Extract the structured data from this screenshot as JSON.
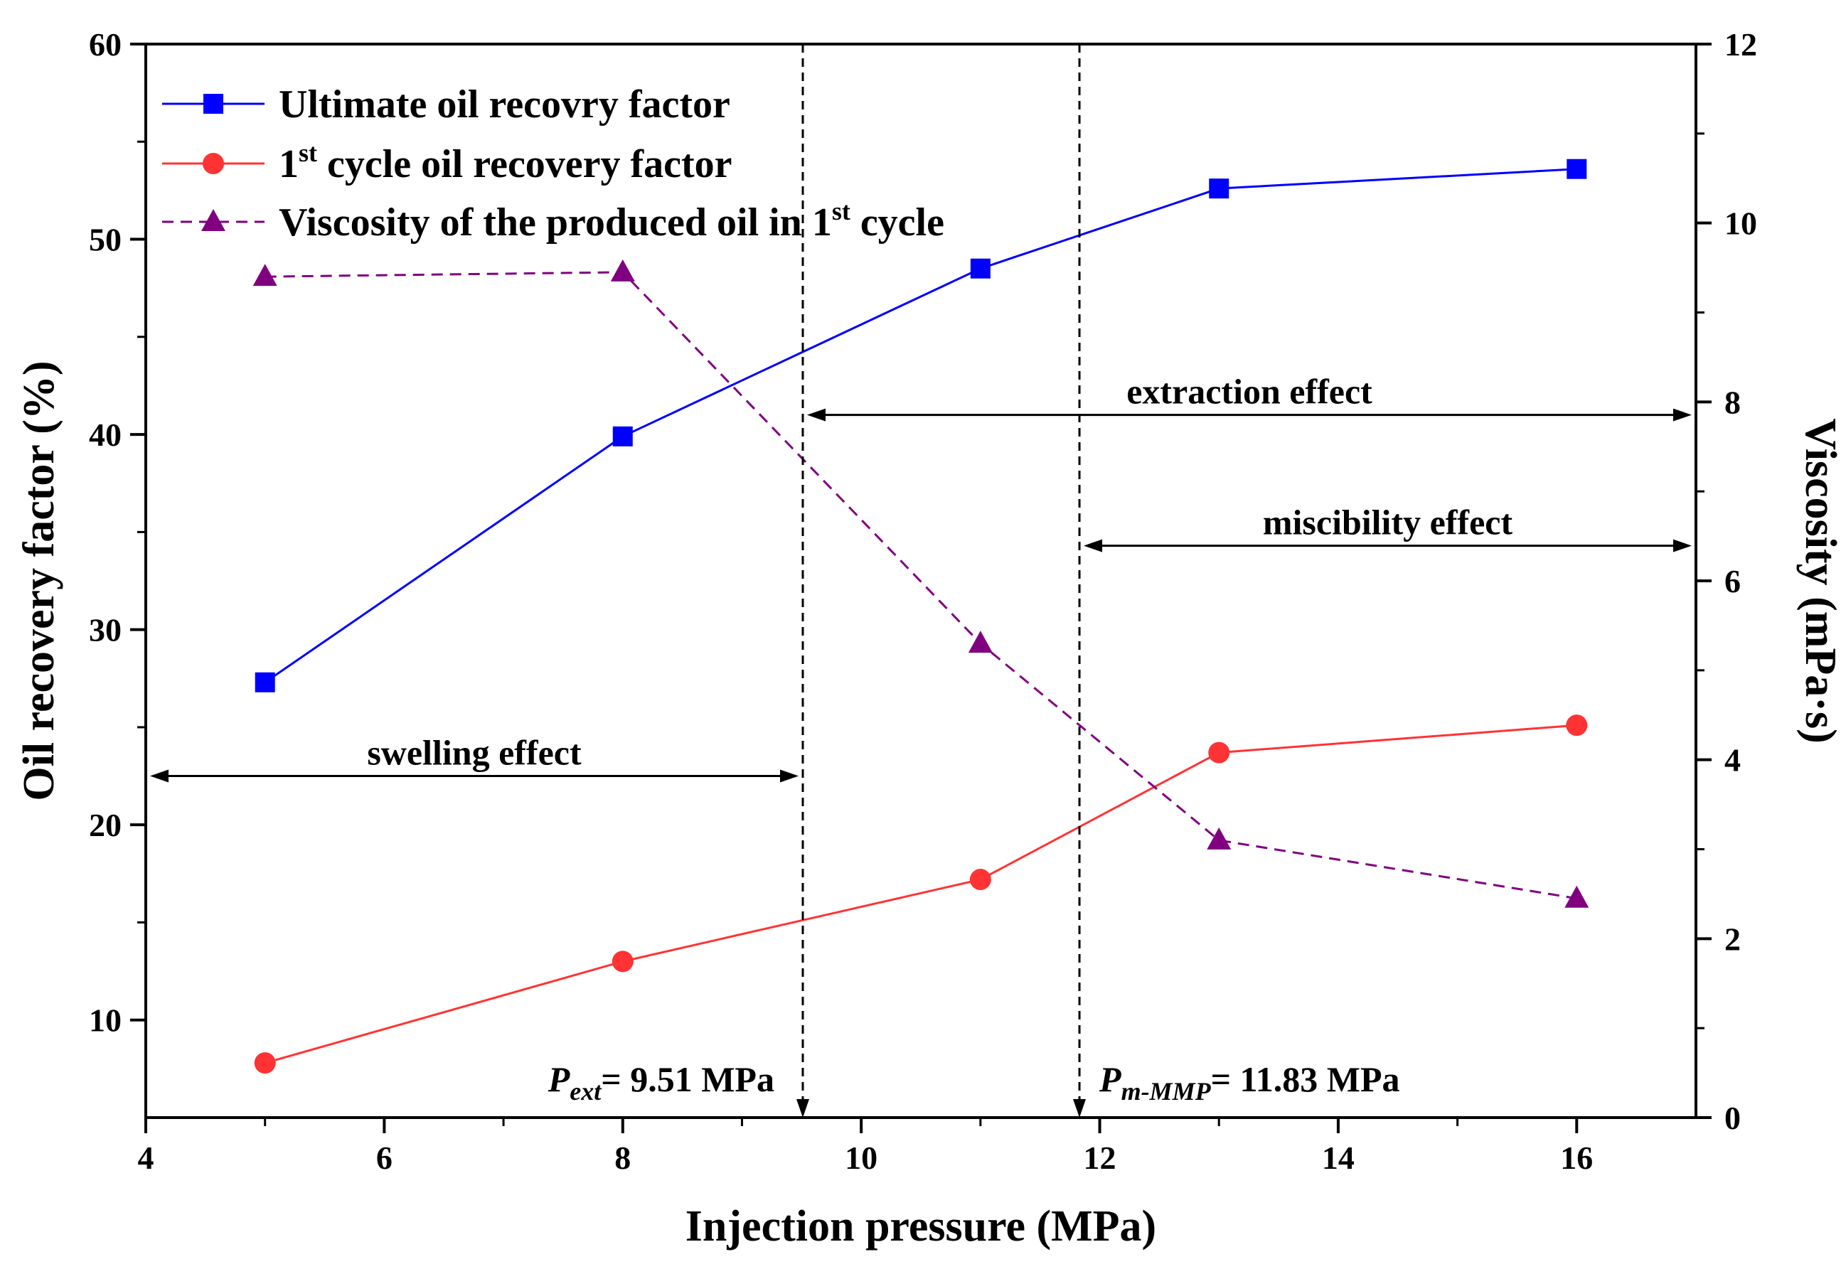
{
  "chart_data": {
    "type": "line",
    "xlabel": "Injection pressure (MPa)",
    "ylabel": "Oil recovery factor (%)",
    "y2label": "Viscosity (mPa·s)",
    "xlim": [
      4,
      17
    ],
    "ylim": [
      5,
      60
    ],
    "y2lim": [
      0,
      12
    ],
    "xticks": [
      "4",
      "6",
      "8",
      "10",
      "12",
      "14",
      "16"
    ],
    "yticks": [
      "10",
      "20",
      "30",
      "40",
      "50",
      "60"
    ],
    "y2ticks": [
      "0",
      "2",
      "4",
      "6",
      "8",
      "10",
      "12"
    ],
    "x": [
      5,
      8,
      11,
      13,
      16
    ],
    "series": [
      {
        "name": "Ultimate oil recovry factor",
        "axis": "left",
        "color": "#0000ff",
        "marker": "square",
        "values": [
          27.3,
          39.9,
          48.5,
          52.6,
          53.6
        ]
      },
      {
        "name_main": "1",
        "name_sup": "st",
        "name_rest": " cycle oil recovery factor",
        "axis": "left",
        "color": "#ff3333",
        "marker": "circle",
        "values": [
          7.8,
          13.0,
          17.2,
          23.7,
          25.1
        ]
      },
      {
        "name_main": "Viscosity of the produced oil in 1",
        "name_sup": "st",
        "name_rest": " cycle",
        "axis": "right",
        "color": "#800080",
        "marker": "triangle",
        "dashed": true,
        "values": [
          9.4,
          9.45,
          5.3,
          3.1,
          2.45
        ]
      }
    ],
    "vlines": [
      {
        "x": 9.51,
        "label_main": "P",
        "label_sub": "ext",
        "label_rest": "= 9.51 MPa"
      },
      {
        "x": 11.83,
        "label_main": "P",
        "label_sub": "m-MMP",
        "label_rest": "= 11.83 MPa"
      }
    ],
    "ranges": [
      {
        "label": "swelling effect",
        "from": 4,
        "to": 9.51,
        "y": 22.5
      },
      {
        "label": "extraction effect",
        "from": 9.51,
        "to": 17,
        "y": 41
      },
      {
        "label": "miscibility effect",
        "from": 11.83,
        "to": 17,
        "y": 34.3
      }
    ],
    "legend_position": "top-left"
  }
}
